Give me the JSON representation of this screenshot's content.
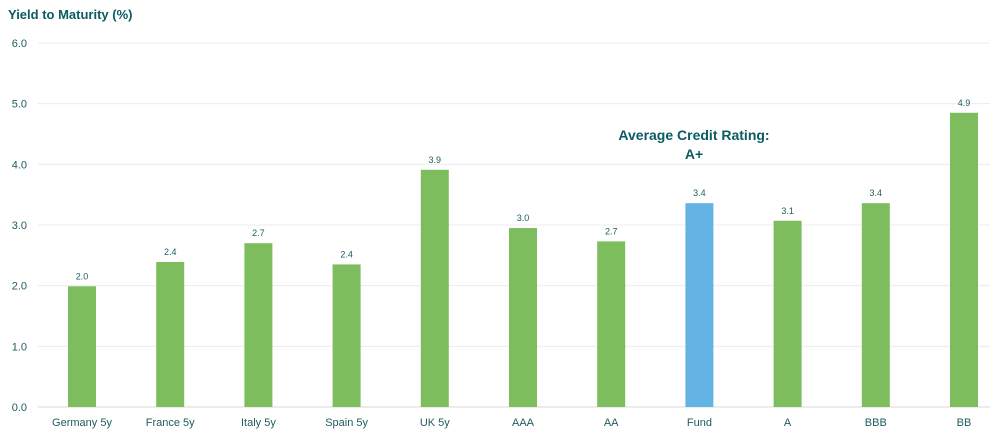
{
  "chart_data": {
    "type": "bar",
    "title": "",
    "ylabel": "Yield to Maturity (%)",
    "xlabel": "",
    "ylim": [
      0,
      6
    ],
    "yticks": [
      "0.0",
      "1.0",
      "2.0",
      "3.0",
      "4.0",
      "5.0",
      "6.0"
    ],
    "grid": true,
    "legend": "none",
    "categories": [
      "Germany 5y",
      "France 5y",
      "Italy 5y",
      "Spain 5y",
      "UK 5y",
      "AAA",
      "AA",
      "Fund",
      "A",
      "BBB",
      "BB"
    ],
    "values": [
      1.99,
      2.39,
      2.7,
      2.35,
      3.91,
      2.95,
      2.73,
      3.36,
      3.07,
      3.36,
      4.85
    ],
    "data_labels": [
      "2.0",
      "2.4",
      "2.7",
      "2.4",
      "3.9",
      "3.0",
      "2.7",
      "3.4",
      "3.1",
      "3.4",
      "4.9"
    ],
    "colors": [
      "#7dbd5e",
      "#7dbd5e",
      "#7dbd5e",
      "#7dbd5e",
      "#7dbd5e",
      "#7dbd5e",
      "#7dbd5e",
      "#63b3e4",
      "#7dbd5e",
      "#7dbd5e",
      "#7dbd5e"
    ],
    "annotations": [
      "Average Credit Rating:",
      "A+"
    ]
  }
}
